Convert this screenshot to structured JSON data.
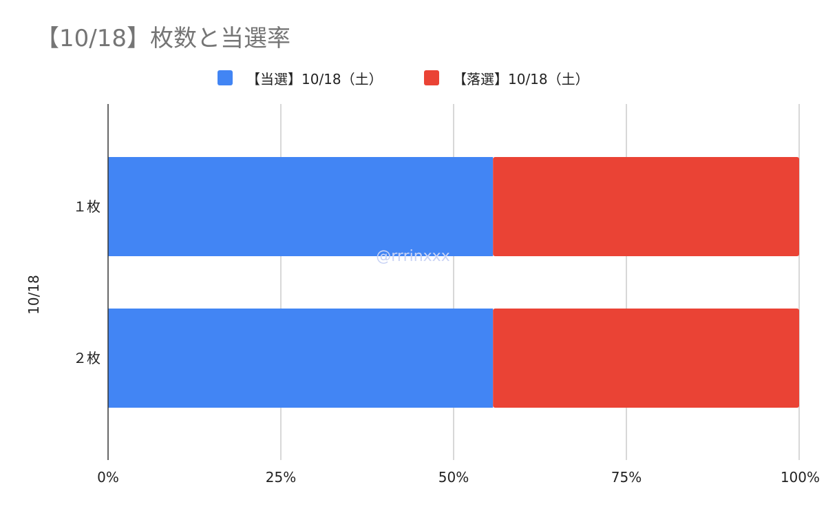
{
  "chart_data": {
    "type": "bar",
    "orientation": "horizontal",
    "stacked": "percent",
    "title": "【10/18】枚数と当選率",
    "ylabel": "10/18",
    "categories": [
      "１枚",
      "２枚"
    ],
    "series": [
      {
        "name": "【当選】10/18（土）",
        "color": "#4285f4",
        "values": [
          0.557,
          0.557
        ]
      },
      {
        "name": "【落選】10/18（土）",
        "color": "#ea4335",
        "values": [
          0.443,
          0.443
        ]
      }
    ],
    "x_ticks": [
      "0%",
      "25%",
      "50%",
      "75%",
      "100%"
    ],
    "xlim": [
      0,
      1
    ],
    "grid": true,
    "legend_position": "top",
    "watermark": "@rrrinxxx"
  }
}
